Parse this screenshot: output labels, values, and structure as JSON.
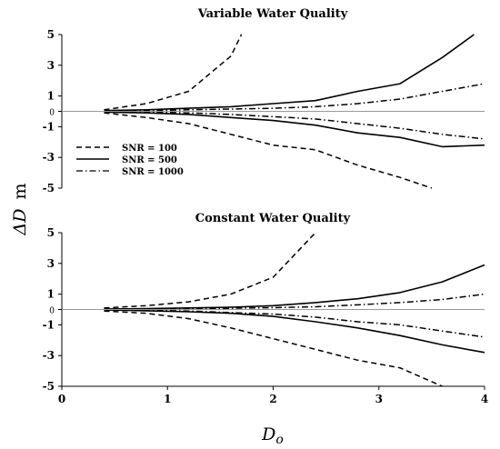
{
  "shared_axes": {
    "ylabel_symbol": "ΔD",
    "ylabel_unit": "m",
    "xlabel_symbol": "D",
    "xlabel_sub": "o"
  },
  "legend": {
    "entries": [
      {
        "label": "SNR = 100",
        "dash": "dashed"
      },
      {
        "label": "SNR = 500",
        "dash": "solid"
      },
      {
        "label": "SNR = 1000",
        "dash": "dashdot"
      }
    ]
  },
  "chart_data": [
    {
      "type": "line",
      "title": "Variable Water Quality",
      "xlabel": "Do",
      "ylabel": "ΔD m",
      "xlim": [
        0,
        4
      ],
      "ylim": [
        -5,
        5
      ],
      "xticks": [],
      "yticks": [
        "5",
        "3",
        "1",
        "0",
        "-1",
        "-3",
        "-5"
      ],
      "zero_line": true,
      "series": [
        {
          "name": "SNR = 100",
          "dash": "dashed",
          "x": [
            0.4,
            0.8,
            1.2,
            1.6,
            1.7
          ],
          "y": [
            0.1,
            0.5,
            1.3,
            3.6,
            5.0
          ]
        },
        {
          "name": "SNR = 100",
          "dash": "dashed",
          "x": [
            0.4,
            0.8,
            1.2,
            1.6,
            2.0,
            2.4,
            2.8,
            3.2,
            3.5
          ],
          "y": [
            -0.1,
            -0.4,
            -0.8,
            -1.5,
            -2.2,
            -2.5,
            -3.5,
            -4.3,
            -5.0
          ]
        },
        {
          "name": "SNR = 500",
          "dash": "solid",
          "x": [
            0.4,
            0.8,
            1.2,
            1.6,
            2.0,
            2.4,
            2.8,
            3.2,
            3.6,
            3.9
          ],
          "y": [
            0.05,
            0.1,
            0.2,
            0.3,
            0.5,
            0.7,
            1.3,
            1.8,
            3.5,
            5.0
          ]
        },
        {
          "name": "SNR = 500",
          "dash": "solid",
          "x": [
            0.4,
            0.8,
            1.2,
            1.6,
            2.0,
            2.4,
            2.8,
            3.2,
            3.6,
            4.0
          ],
          "y": [
            -0.05,
            -0.1,
            -0.2,
            -0.4,
            -0.6,
            -0.9,
            -1.4,
            -1.7,
            -2.3,
            -2.2
          ]
        },
        {
          "name": "SNR = 1000",
          "dash": "dashdot",
          "x": [
            0.4,
            0.8,
            1.2,
            1.6,
            2.0,
            2.4,
            2.8,
            3.2,
            3.6,
            4.0
          ],
          "y": [
            0.02,
            0.05,
            0.1,
            0.15,
            0.2,
            0.3,
            0.5,
            0.8,
            1.3,
            1.8
          ]
        },
        {
          "name": "SNR = 1000",
          "dash": "dashdot",
          "x": [
            0.4,
            0.8,
            1.2,
            1.6,
            2.0,
            2.4,
            2.8,
            3.2,
            3.6,
            4.0
          ],
          "y": [
            -0.02,
            -0.05,
            -0.1,
            -0.2,
            -0.35,
            -0.5,
            -0.8,
            -1.1,
            -1.5,
            -1.8
          ]
        }
      ]
    },
    {
      "type": "line",
      "title": "Constant Water Quality",
      "xlabel": "Do",
      "ylabel": "ΔD m",
      "xlim": [
        0,
        4
      ],
      "ylim": [
        -5,
        5
      ],
      "xticks": [
        "0",
        "1",
        "2",
        "3",
        "4"
      ],
      "yticks": [
        "5",
        "3",
        "1",
        "0",
        "-1",
        "-3",
        "-5"
      ],
      "zero_line": true,
      "series": [
        {
          "name": "SNR = 100",
          "dash": "dashed",
          "x": [
            0.4,
            0.8,
            1.2,
            1.6,
            2.0,
            2.4
          ],
          "y": [
            0.1,
            0.25,
            0.5,
            1.0,
            2.1,
            5.0
          ]
        },
        {
          "name": "SNR = 100",
          "dash": "dashed",
          "x": [
            0.4,
            0.8,
            1.2,
            1.6,
            2.0,
            2.4,
            2.8,
            3.2,
            3.6
          ],
          "y": [
            -0.1,
            -0.25,
            -0.6,
            -1.2,
            -1.9,
            -2.6,
            -3.3,
            -3.8,
            -5.0
          ]
        },
        {
          "name": "SNR = 500",
          "dash": "solid",
          "x": [
            0.4,
            0.8,
            1.2,
            1.6,
            2.0,
            2.4,
            2.8,
            3.2,
            3.6,
            4.0
          ],
          "y": [
            0.03,
            0.06,
            0.1,
            0.15,
            0.25,
            0.45,
            0.7,
            1.1,
            1.8,
            2.9
          ]
        },
        {
          "name": "SNR = 500",
          "dash": "solid",
          "x": [
            0.4,
            0.8,
            1.2,
            1.6,
            2.0,
            2.4,
            2.8,
            3.2,
            3.6,
            4.0
          ],
          "y": [
            -0.03,
            -0.08,
            -0.15,
            -0.25,
            -0.45,
            -0.8,
            -1.2,
            -1.7,
            -2.3,
            -2.8
          ]
        },
        {
          "name": "SNR = 1000",
          "dash": "dashdot",
          "x": [
            0.4,
            0.8,
            1.2,
            1.6,
            2.0,
            2.4,
            2.8,
            3.2,
            3.6,
            4.0
          ],
          "y": [
            0.01,
            0.03,
            0.05,
            0.08,
            0.12,
            0.18,
            0.3,
            0.45,
            0.65,
            1.0
          ]
        },
        {
          "name": "SNR = 1000",
          "dash": "dashdot",
          "x": [
            0.4,
            0.8,
            1.2,
            1.6,
            2.0,
            2.4,
            2.8,
            3.2,
            3.6,
            4.0
          ],
          "y": [
            -0.02,
            -0.05,
            -0.1,
            -0.2,
            -0.3,
            -0.5,
            -0.8,
            -1.0,
            -1.4,
            -1.8
          ]
        }
      ]
    }
  ]
}
